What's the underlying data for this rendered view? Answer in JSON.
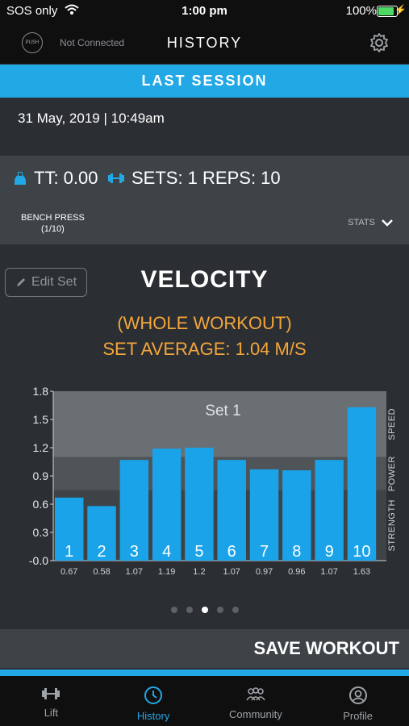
{
  "status_bar": {
    "carrier": "SOS only",
    "time": "1:00 pm",
    "battery": "100%"
  },
  "nav": {
    "connection": "Not Connected",
    "title": "HISTORY",
    "logo_text": "PUSH"
  },
  "banner": {
    "label": "LAST SESSION"
  },
  "session": {
    "date": "31 May, 2019 | 10:49am"
  },
  "summary": {
    "tt": "TT: 0.00",
    "sets_reps": "SETS: 1 REPS: 10",
    "exercise_line1": "BENCH PRESS",
    "exercise_line2": "(1/10)",
    "stats_label": "STATS"
  },
  "edit_set": {
    "label": "Edit Set"
  },
  "chart_header": {
    "title": "VELOCITY",
    "subtitle": "(WHOLE WORKOUT)",
    "average": "SET AVERAGE: 1.04 M/S"
  },
  "chart_data": {
    "type": "bar",
    "title": "",
    "set_label": "Set 1",
    "categories": [
      "1",
      "2",
      "3",
      "4",
      "5",
      "6",
      "7",
      "8",
      "9",
      "10"
    ],
    "values": [
      0.67,
      0.58,
      1.07,
      1.19,
      1.2,
      1.07,
      0.97,
      0.96,
      1.07,
      1.63
    ],
    "value_labels": [
      "0.67",
      "0.58",
      "1.07",
      "1.19",
      "1.2",
      "1.07",
      "0.97",
      "0.96",
      "1.07",
      "1.63"
    ],
    "ylim": [
      0,
      1.8
    ],
    "yticks": [
      "1.8",
      "1.5",
      "1.2",
      "0.9",
      "0.6",
      "0.3",
      "-0.0"
    ],
    "zones": [
      {
        "label": "SPEED",
        "from": 1.1,
        "to": 1.8
      },
      {
        "label": "POWER",
        "from": 0.75,
        "to": 1.1
      },
      {
        "label": "STRENGTH",
        "from": 0,
        "to": 0.75
      }
    ],
    "bar_color": "#1aa3e8"
  },
  "pager": {
    "count": 5,
    "active": 2
  },
  "save": {
    "label": "SAVE WORKOUT"
  },
  "tabs": [
    {
      "label": "Lift",
      "icon": "dumbbell-icon"
    },
    {
      "label": "History",
      "icon": "history-icon"
    },
    {
      "label": "Community",
      "icon": "community-icon"
    },
    {
      "label": "Profile",
      "icon": "profile-icon"
    }
  ],
  "colors": {
    "accent": "#23a8e6",
    "highlight": "#f4a63a"
  }
}
